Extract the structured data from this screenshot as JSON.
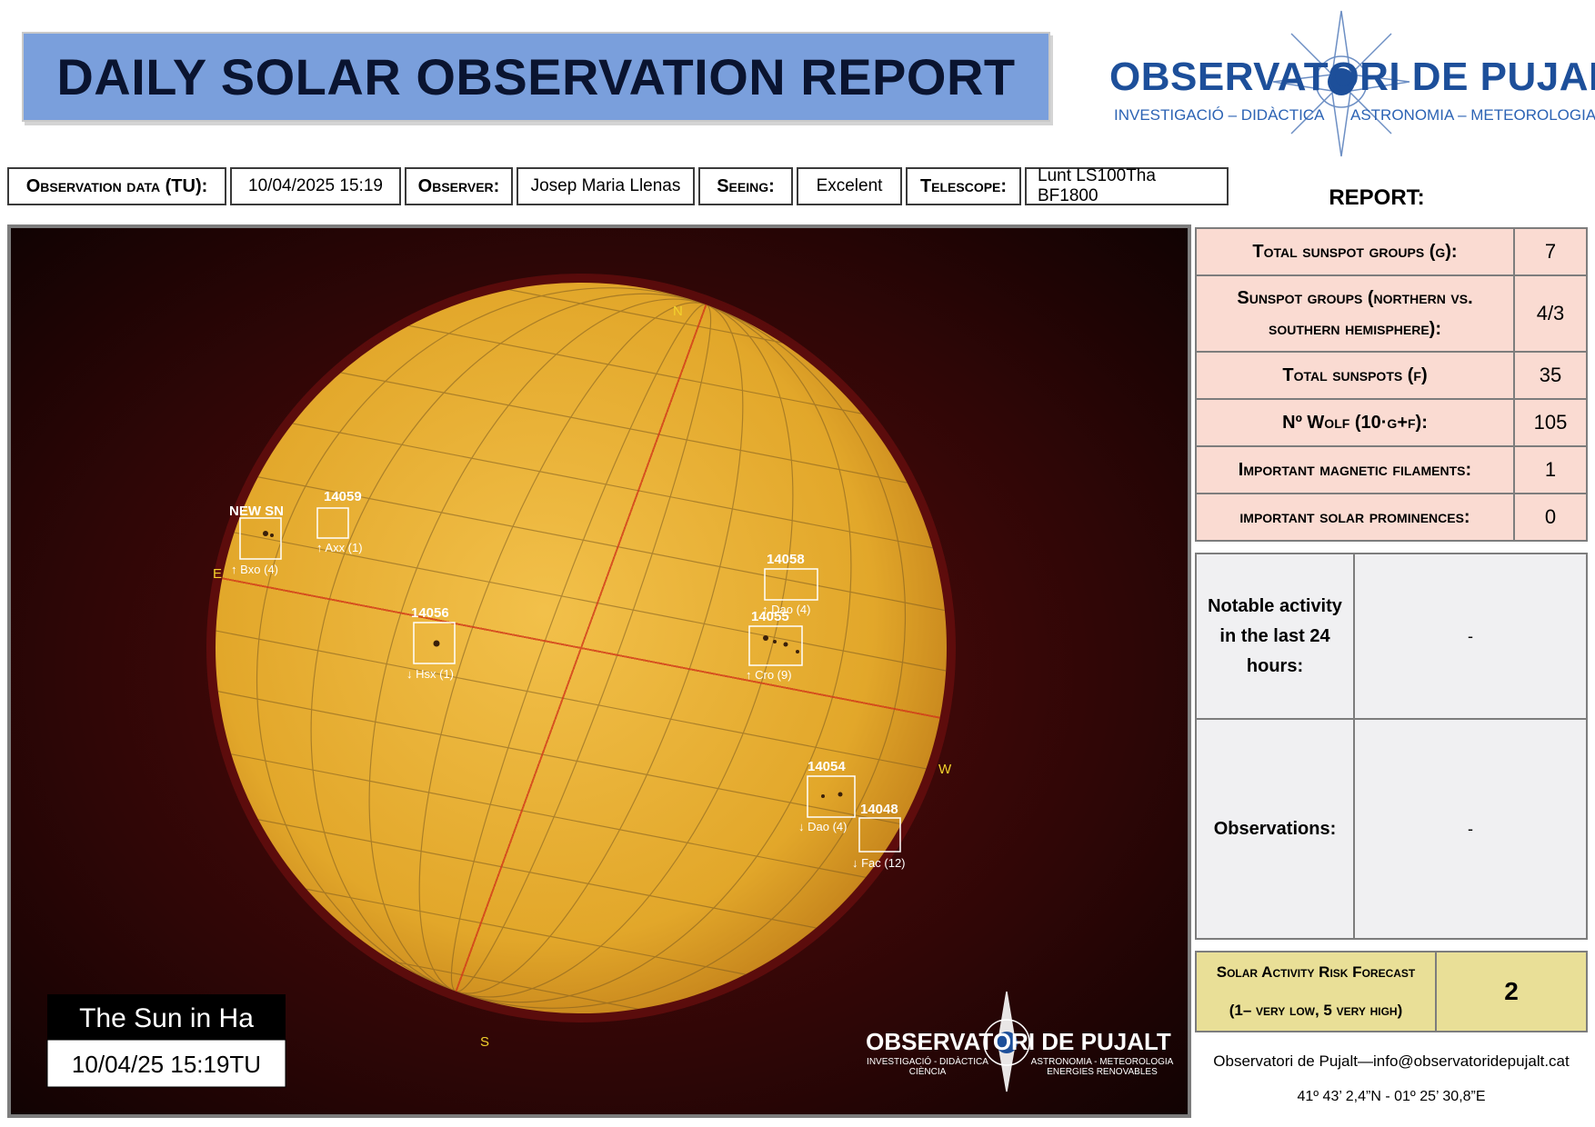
{
  "title": "DAILY SOLAR OBSERVATION REPORT",
  "logo": {
    "main": "OBSERVATORI DE PUJALT",
    "sub_left": "INVESTIGACIÓ – DIDÀCTICA",
    "sub_right": "ASTRONOMIA – METEOROLOGIA"
  },
  "info": {
    "observation_label": "Observation data (TU):",
    "observation_value": "10/04/2025 15:19",
    "observer_label": "Observer:",
    "observer_value": "Josep Maria Llenas",
    "seeing_label": "Seeing:",
    "seeing_value": "Excelent",
    "telescope_label": "Telescope:",
    "telescope_value": "Lunt LS100Tha BF1800"
  },
  "image": {
    "compass": {
      "n": "N",
      "s": "S",
      "e": "E",
      "w": "W"
    },
    "groups": [
      {
        "id": "NEW SN",
        "class": "↑ Bxo (4)"
      },
      {
        "id": "14059",
        "class": "↑ Axx (1)"
      },
      {
        "id": "14056",
        "class": "↓ Hsx (1)"
      },
      {
        "id": "14058",
        "class": "↑ Dao (4)"
      },
      {
        "id": "14055",
        "class": "↑ Cro (9)"
      },
      {
        "id": "14054",
        "class": "↓ Dao (4)"
      },
      {
        "id": "14048",
        "class": "↓ Fac (12)"
      }
    ],
    "caption_title": "The Sun in Ha",
    "caption_date": "10/04/25 15:19TU",
    "watermark_main": "OBSERVATORI DE PUJALT",
    "watermark_sub_left_1": "INVESTIGACIÓ - DIDÀCTICA",
    "watermark_sub_left_2": "CIÈNCIA",
    "watermark_sub_right_1": "ASTRONOMIA - METEOROLOGIA",
    "watermark_sub_right_2": "ENERGIES RENOVABLES"
  },
  "report": {
    "title": "REPORT:",
    "rows": [
      {
        "label": "Total sunspot groups (g):",
        "value": "7"
      },
      {
        "label": "Sunspot groups (northern vs. southern hemisphere):",
        "value": "4/3"
      },
      {
        "label": "Total sunspots (f)",
        "value": "35"
      },
      {
        "label": "Nº Wolf (10·g+f):",
        "value": "105"
      },
      {
        "label": "Important magnetic filaments:",
        "value": "1"
      },
      {
        "label": "important solar prominences:",
        "value": "0"
      }
    ]
  },
  "activity": {
    "notable_label": "Notable activity in the last 24 hours:",
    "notable_value": "-",
    "observations_label": "Observations:",
    "observations_value": "-"
  },
  "risk": {
    "label_line1": "Solar Activity Risk Forecast",
    "label_line2": "(1– very low, 5 very high)",
    "value": "2"
  },
  "footer": {
    "contact": "Observatori de Pujalt—info@observatoridepujalt.cat",
    "coords": "41º 43’ 2,4”N - 01º 25’ 30,8”E"
  },
  "colors": {
    "banner": "#7a9fdc",
    "report_rows": "#fadbd2",
    "risk": "#e9df97",
    "sun": "#e2a72a"
  }
}
